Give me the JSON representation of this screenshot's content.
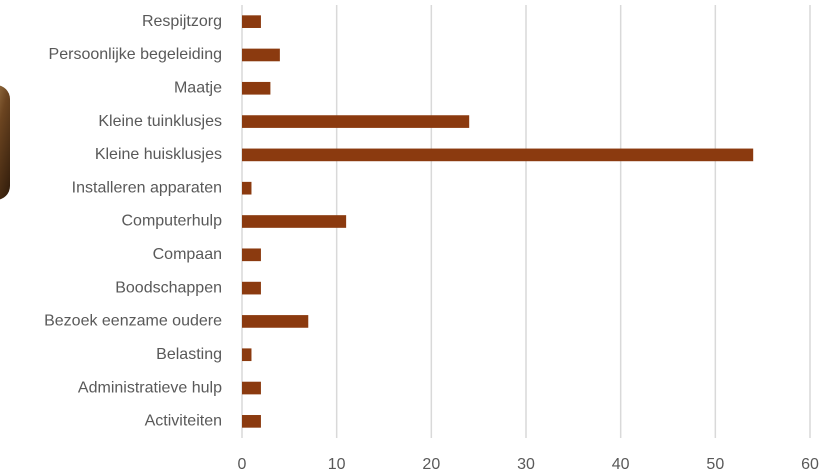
{
  "chart_data": {
    "type": "bar",
    "orientation": "horizontal",
    "categories": [
      "Respijtzorg",
      "Persoonlijke begeleiding",
      "Maatje",
      "Kleine tuinklusjes",
      "Kleine huisklusjes",
      "Installeren apparaten",
      "Computerhulp",
      "Compaan",
      "Boodschappen",
      "Bezoek eenzame oudere",
      "Belasting",
      "Administratieve hulp",
      "Activiteiten"
    ],
    "values": [
      2,
      4,
      3,
      24,
      54,
      1,
      11,
      2,
      2,
      7,
      1,
      2,
      2
    ],
    "color": "#8b3a0f",
    "xlim": [
      0,
      60
    ],
    "xticks": [
      0,
      10,
      20,
      30,
      40,
      50,
      60
    ],
    "grid": true
  }
}
